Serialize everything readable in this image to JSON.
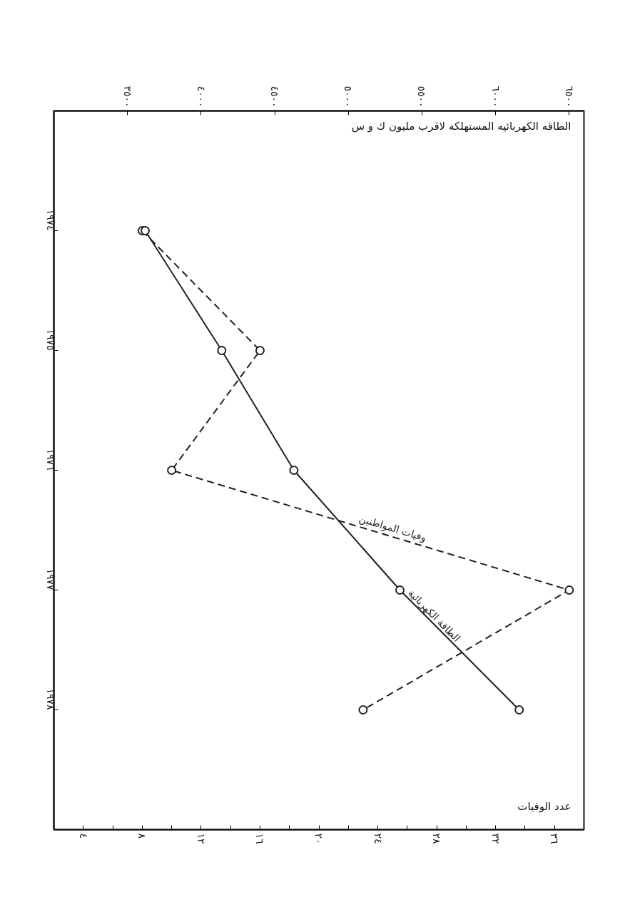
{
  "chart_data": {
    "type": "line",
    "orientation": "horizontal",
    "categories": [
      "١٩٧٤",
      "١٩٧٥",
      "١٩٧٦",
      "١٩٧٧",
      "١٩٧٨"
    ],
    "xlabel": "عدد الوفيات",
    "x2label": "الطاقه الكهربائيه المستهلكه لاقرب مليون ك و س",
    "xlim": [
      2,
      38
    ],
    "xticks": [
      {
        "value": 4,
        "label": "٤"
      },
      {
        "value": 6,
        "label": null
      },
      {
        "value": 8,
        "label": "٨"
      },
      {
        "value": 10,
        "label": null
      },
      {
        "value": 12,
        "label": "١٢"
      },
      {
        "value": 14,
        "label": null
      },
      {
        "value": 16,
        "label": "١٦"
      },
      {
        "value": 18,
        "label": null
      },
      {
        "value": 20,
        "label": "٢٠"
      },
      {
        "value": 22,
        "label": null
      },
      {
        "value": 24,
        "label": "٢٤"
      },
      {
        "value": 26,
        "label": null
      },
      {
        "value": 28,
        "label": "٢٨"
      },
      {
        "value": 30,
        "label": null
      },
      {
        "value": 32,
        "label": "٣٢"
      },
      {
        "value": 34,
        "label": null
      },
      {
        "value": 36,
        "label": "٣٦"
      }
    ],
    "x2lim": [
      3000,
      6600
    ],
    "x2ticks": [
      {
        "value": 3500,
        "label": "٣٥٠٠"
      },
      {
        "value": 4000,
        "label": "٤٠٠٠"
      },
      {
        "value": 4500,
        "label": "٤٥٠٠"
      },
      {
        "value": 5000,
        "label": "٥٠٠٠"
      },
      {
        "value": 5500,
        "label": "٥٥٠٠"
      },
      {
        "value": 6000,
        "label": "٦٠٠٠"
      },
      {
        "value": 6500,
        "label": "٦٥٠٠"
      }
    ],
    "series": [
      {
        "name": "وفيات المواطنين",
        "color": "#222222",
        "line_style": "dashed",
        "values": [
          8,
          16,
          10,
          37,
          23
        ]
      },
      {
        "name": "الطاقة الكهربائية",
        "color": "#222222",
        "line_style": "solid",
        "axis": "x2",
        "values": [
          3620,
          4140,
          4630,
          5350,
          6160
        ]
      }
    ],
    "marker": "circle",
    "grid": false
  }
}
